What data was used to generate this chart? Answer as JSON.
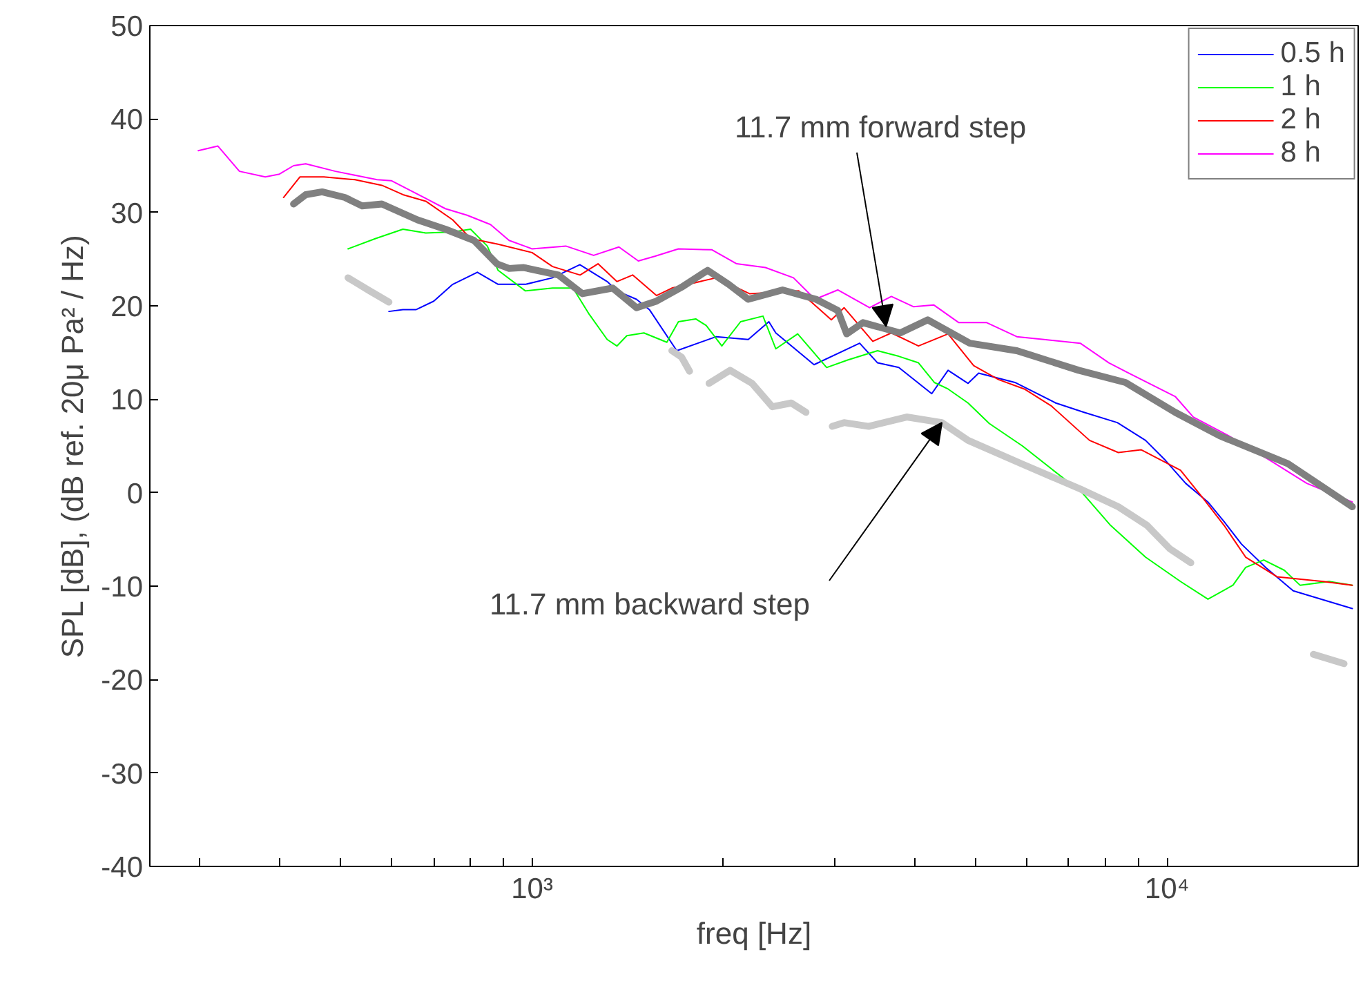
{
  "chart_data": {
    "type": "line",
    "xlabel": "freq [Hz]",
    "ylabel": "SPL [dB], (dB ref. 20μ Pa² / Hz)",
    "log": "x",
    "grid": false,
    "legend": "top right",
    "marker": "none",
    "line_style": "solid",
    "xlim": [
      250,
      20000
    ],
    "ylim": [
      -40,
      50
    ],
    "xticks": [
      {
        "value": 300,
        "label": null
      },
      {
        "value": 400,
        "label": null
      },
      {
        "value": 500,
        "label": null
      },
      {
        "value": 600,
        "label": null
      },
      {
        "value": 700,
        "label": null
      },
      {
        "value": 800,
        "label": null
      },
      {
        "value": 900,
        "label": null
      },
      {
        "value": 1000,
        "label": "10³"
      },
      {
        "value": 2000,
        "label": null
      },
      {
        "value": 3000,
        "label": null
      },
      {
        "value": 4000,
        "label": null
      },
      {
        "value": 5000,
        "label": null
      },
      {
        "value": 6000,
        "label": null
      },
      {
        "value": 7000,
        "label": null
      },
      {
        "value": 8000,
        "label": null
      },
      {
        "value": 9000,
        "label": null
      },
      {
        "value": 10000,
        "label": "10⁴"
      },
      {
        "value": 20000,
        "label": null
      }
    ],
    "yticks": [
      -40,
      -30,
      -20,
      -10,
      0,
      10,
      20,
      30,
      40,
      50
    ],
    "series": [
      {
        "name": "0.5 h",
        "color": "#0000ff",
        "x": [
          595,
          626,
          657,
          700,
          750,
          820,
          884,
          976,
          1077,
          1189,
          1313,
          1360,
          1460,
          1530,
          1690,
          1950,
          2190,
          2360,
          2420,
          2780,
          3280,
          3500,
          3780,
          4260,
          4520,
          4860,
          5050,
          5760,
          6680,
          7400,
          8350,
          9250,
          9930,
          10700,
          11600,
          12300,
          13100,
          14300,
          15800,
          19580
        ],
        "values": [
          19.4,
          19.6,
          19.6,
          20.5,
          22.3,
          23.6,
          22.3,
          22.3,
          23.0,
          24.4,
          22.6,
          21.6,
          20.7,
          19.6,
          15.2,
          16.7,
          16.4,
          18.3,
          17.1,
          13.7,
          16.0,
          13.9,
          13.4,
          10.6,
          13.1,
          11.7,
          12.8,
          11.8,
          9.6,
          8.6,
          7.5,
          5.6,
          3.5,
          1.0,
          -1.0,
          -3.1,
          -5.5,
          -8.0,
          -10.5,
          -12.4
        ]
      },
      {
        "name": "1 h",
        "color": "#00ff00",
        "x": [
          513,
          567,
          626,
          680,
          750,
          800,
          850,
          884,
          976,
          1077,
          1160,
          1230,
          1313,
          1360,
          1410,
          1500,
          1630,
          1700,
          1810,
          1880,
          1990,
          2130,
          2310,
          2420,
          2620,
          2910,
          3140,
          3500,
          3780,
          4060,
          4300,
          4520,
          4860,
          5250,
          5920,
          6590,
          7350,
          8150,
          9250,
          10500,
          11600,
          12700,
          13300,
          14200,
          15300,
          16200,
          18000,
          19580
        ],
        "values": [
          26.1,
          27.2,
          28.2,
          27.8,
          27.9,
          28.2,
          26.4,
          23.8,
          21.6,
          21.9,
          21.9,
          19.1,
          16.4,
          15.7,
          16.8,
          17.1,
          16.1,
          18.3,
          18.6,
          17.9,
          15.7,
          18.3,
          18.9,
          15.4,
          17.0,
          13.4,
          14.2,
          15.2,
          14.6,
          13.9,
          11.8,
          11.1,
          9.6,
          7.4,
          5.0,
          2.5,
          0.0,
          -3.5,
          -6.9,
          -9.5,
          -11.4,
          -9.9,
          -8.0,
          -7.2,
          -8.3,
          -9.9,
          -9.5,
          -9.9
        ]
      },
      {
        "name": "2 h",
        "color": "#ff0000",
        "x": [
          406,
          431,
          470,
          526,
          580,
          626,
          680,
          750,
          800,
          884,
          1000,
          1077,
          1190,
          1270,
          1360,
          1440,
          1570,
          1660,
          1950,
          2200,
          2630,
          2960,
          3100,
          3440,
          3680,
          4060,
          4520,
          4960,
          5430,
          5960,
          6570,
          7550,
          8380,
          9100,
          10500,
          11400,
          12300,
          13300,
          14900,
          17600,
          19580
        ],
        "values": [
          31.6,
          33.8,
          33.8,
          33.5,
          32.9,
          31.9,
          31.2,
          29.2,
          27.2,
          26.6,
          25.7,
          24.2,
          23.3,
          24.5,
          22.6,
          23.3,
          21.1,
          21.9,
          23.0,
          21.3,
          21.6,
          18.5,
          19.8,
          16.2,
          17.1,
          15.7,
          17.0,
          13.6,
          12.1,
          11.1,
          9.3,
          5.6,
          4.3,
          4.6,
          2.4,
          -0.6,
          -3.5,
          -6.9,
          -9.0,
          -9.5,
          -9.9
        ]
      },
      {
        "name": "8 h",
        "color": "#ff00ff",
        "x": [
          298,
          320,
          346,
          380,
          400,
          421,
          440,
          490,
          570,
          600,
          680,
          730,
          790,
          860,
          920,
          1000,
          1130,
          1250,
          1370,
          1470,
          1560,
          1700,
          1920,
          2100,
          2330,
          2580,
          2790,
          3030,
          3400,
          3680,
          3990,
          4290,
          4700,
          5200,
          5800,
          6400,
          7300,
          8100,
          8700,
          10300,
          11000,
          12500,
          14500,
          16600,
          19580
        ],
        "values": [
          36.6,
          37.1,
          34.4,
          33.8,
          34.1,
          35.0,
          35.2,
          34.4,
          33.5,
          33.4,
          31.5,
          30.4,
          29.7,
          28.7,
          27.0,
          26.1,
          26.4,
          25.4,
          26.3,
          24.8,
          25.3,
          26.1,
          26.0,
          24.5,
          24.1,
          23.0,
          20.7,
          21.7,
          19.8,
          21.0,
          19.9,
          20.1,
          18.2,
          18.2,
          16.7,
          16.4,
          16.0,
          13.9,
          12.8,
          10.3,
          8.1,
          6.1,
          3.5,
          1.0,
          -1.0
        ]
      },
      {
        "color": "#808080",
        "x": [
          421,
          440,
          467,
          507,
          540,
          580,
          660,
          730,
          810,
          880,
          920,
          970,
          1100,
          1200,
          1340,
          1460,
          1570,
          1720,
          1890,
          2040,
          2190,
          2480,
          2800,
          3030,
          3130,
          3320,
          3800,
          4200,
          4890,
          5800,
          7260,
          8600,
          10300,
          12100,
          15500,
          19580
        ],
        "values": [
          30.9,
          31.9,
          32.2,
          31.6,
          30.7,
          30.9,
          29.2,
          28.2,
          27.0,
          24.5,
          24.0,
          24.1,
          23.3,
          21.3,
          21.9,
          19.8,
          20.5,
          22.0,
          23.8,
          22.3,
          20.7,
          21.7,
          20.7,
          19.5,
          17.0,
          18.2,
          17.1,
          18.5,
          16.0,
          15.2,
          13.1,
          11.8,
          8.6,
          6.1,
          3.1,
          -1.5
        ]
      },
      {
        "color": "#c8c8c8",
        "x": [
          513,
          555,
          595,
          null,
          1660,
          1720,
          1770,
          null,
          1900,
          2050,
          2220,
          2390,
          2560,
          2700,
          null,
          2970,
          3100,
          3390,
          3890,
          4420,
          4860,
          5900,
          7300,
          8380,
          9300,
          10100,
          10900,
          null,
          17000,
          19000
        ],
        "values": [
          23.0,
          21.6,
          20.4,
          null,
          15.2,
          14.5,
          13.0,
          null,
          11.7,
          13.1,
          11.7,
          9.2,
          9.6,
          8.6,
          null,
          7.1,
          7.5,
          7.1,
          8.1,
          7.5,
          5.6,
          3.1,
          0.4,
          -1.5,
          -3.5,
          -6.0,
          -7.5,
          null,
          -17.3,
          -18.3
        ]
      }
    ],
    "annotations": [
      {
        "text": "11.7 mm forward step",
        "x": 3610,
        "y": 17.8
      },
      {
        "text": "11.7 mm backward step",
        "x": 4420,
        "y": 7.5
      }
    ]
  }
}
